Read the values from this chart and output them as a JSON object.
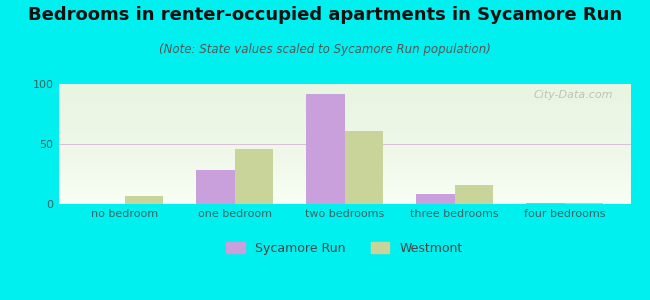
{
  "title": "Bedrooms in renter-occupied apartments in Sycamore Run",
  "subtitle": "(Note: State values scaled to Sycamore Run population)",
  "categories": [
    "no bedroom",
    "one bedroom",
    "two bedrooms",
    "three bedrooms",
    "four bedrooms"
  ],
  "sycamore_run": [
    0,
    28,
    92,
    8,
    1
  ],
  "westmont": [
    7,
    46,
    61,
    16,
    1
  ],
  "sycamore_color": "#c9a0dc",
  "westmont_color": "#c8d49a",
  "background_outer": "#00efef",
  "ylim": [
    0,
    100
  ],
  "yticks": [
    0,
    50,
    100
  ],
  "bar_width": 0.35,
  "legend_labels": [
    "Sycamore Run",
    "Westmont"
  ],
  "watermark": "City-Data.com",
  "title_fontsize": 13,
  "subtitle_fontsize": 8.5,
  "tick_fontsize": 8,
  "legend_fontsize": 9
}
